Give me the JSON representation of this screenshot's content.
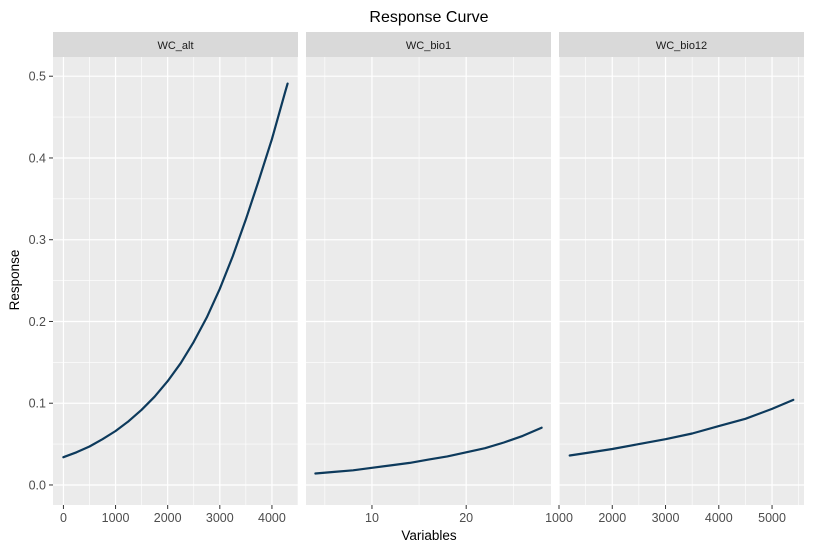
{
  "chart_data": {
    "type": "line",
    "title": "Response Curve",
    "xlabel": "Variables",
    "ylabel": "Response",
    "ylim": [
      0,
      0.5
    ],
    "yticks": [
      0.0,
      0.1,
      0.2,
      0.3,
      0.4,
      0.5
    ],
    "ytick_labels": [
      "0.0",
      "0.1",
      "0.2",
      "0.3",
      "0.4",
      "0.5"
    ],
    "line_color": "#0d3a5c",
    "panel_bg": "#ebebeb",
    "strip_bg": "#d9d9d9",
    "grid": true,
    "panels": [
      {
        "name": "WC_alt",
        "xlim": [
          -200,
          4500
        ],
        "xticks": [
          0,
          1000,
          2000,
          3000,
          4000
        ],
        "xtick_labels": [
          "0",
          "1000",
          "2000",
          "3000",
          "4000"
        ],
        "x": [
          0,
          250,
          500,
          750,
          1000,
          1250,
          1500,
          1750,
          2000,
          2250,
          2500,
          2750,
          3000,
          3250,
          3500,
          3750,
          4000,
          4250,
          4300
        ],
        "y": [
          0.034,
          0.04,
          0.047,
          0.056,
          0.066,
          0.078,
          0.092,
          0.108,
          0.127,
          0.149,
          0.175,
          0.205,
          0.24,
          0.28,
          0.325,
          0.373,
          0.423,
          0.48,
          0.491
        ]
      },
      {
        "name": "WC_bio1",
        "xlim": [
          3,
          29
        ],
        "xticks": [
          10,
          20
        ],
        "xtick_labels": [
          "10",
          "20"
        ],
        "x": [
          4,
          6,
          8,
          10,
          12,
          14,
          16,
          18,
          20,
          22,
          24,
          26,
          28
        ],
        "y": [
          0.014,
          0.016,
          0.018,
          0.021,
          0.024,
          0.027,
          0.031,
          0.035,
          0.04,
          0.045,
          0.052,
          0.06,
          0.07
        ]
      },
      {
        "name": "WC_bio12",
        "xlim": [
          1000,
          5600
        ],
        "xticks": [
          1000,
          2000,
          3000,
          4000,
          5000
        ],
        "xtick_labels": [
          "1000",
          "2000",
          "3000",
          "4000",
          "5000"
        ],
        "x": [
          1200,
          1500,
          2000,
          2500,
          3000,
          3500,
          4000,
          4500,
          5000,
          5400
        ],
        "y": [
          0.036,
          0.039,
          0.044,
          0.05,
          0.056,
          0.063,
          0.072,
          0.081,
          0.093,
          0.104
        ]
      }
    ]
  }
}
